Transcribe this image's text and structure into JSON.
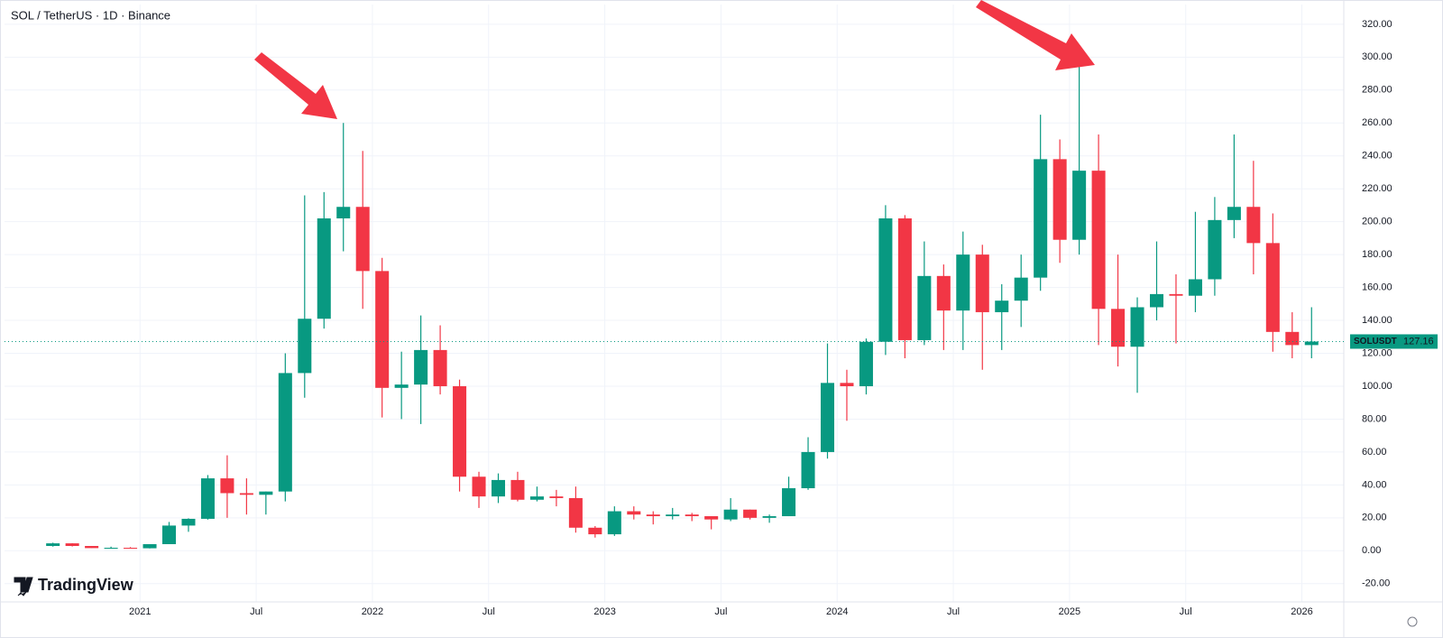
{
  "chart_data": {
    "type": "candlestick",
    "title": "SOL / TetherUS · 1D · Binance",
    "brand": "TradingView",
    "up_color": "#089981",
    "down_color": "#f23645",
    "grid": true,
    "x": [
      "2020-08",
      "2020-09",
      "2020-10",
      "2020-11",
      "2020-12",
      "2021-01",
      "2021-02",
      "2021-03",
      "2021-04",
      "2021-05",
      "2021-06",
      "2021-07",
      "2021-08",
      "2021-09",
      "2021-10",
      "2021-11",
      "2021-12",
      "2022-01",
      "2022-02",
      "2022-03",
      "2022-04",
      "2022-05",
      "2022-06",
      "2022-07",
      "2022-08",
      "2022-09",
      "2022-10",
      "2022-11",
      "2022-12",
      "2023-01",
      "2023-02",
      "2023-03",
      "2023-04",
      "2023-05",
      "2023-06",
      "2023-07",
      "2023-08",
      "2023-09",
      "2023-10",
      "2023-11",
      "2023-12",
      "2024-01",
      "2024-02",
      "2024-03",
      "2024-04",
      "2024-05",
      "2024-06",
      "2024-07",
      "2024-08",
      "2024-09",
      "2024-10",
      "2024-11",
      "2024-12",
      "2025-01",
      "2025-02",
      "2025-03",
      "2025-04",
      "2025-05",
      "2025-06",
      "2025-07",
      "2025-08",
      "2025-09",
      "2025-10",
      "2025-11",
      "2025-12",
      "2026-01"
    ],
    "open": [
      2.9,
      4.5,
      2.9,
      1.6,
      1.8,
      1.5,
      4,
      15.3,
      19.4,
      44,
      35,
      34,
      36,
      108,
      141,
      202,
      209,
      170,
      99,
      101,
      122,
      100,
      45,
      33,
      43,
      31,
      33,
      32,
      14,
      10,
      24,
      22,
      21,
      22,
      21,
      19,
      25,
      20,
      21,
      38,
      60,
      102,
      100,
      127,
      202,
      128,
      167,
      146,
      180,
      145,
      152,
      166,
      238,
      189,
      231,
      147,
      124,
      148,
      156,
      155,
      165,
      201,
      209,
      187,
      133,
      125
    ],
    "high": [
      4.9,
      4.6,
      2.9,
      2.5,
      2.2,
      4,
      17.5,
      19.7,
      46,
      58,
      44,
      36,
      120,
      216,
      218,
      260,
      243,
      178,
      121,
      143,
      137,
      104,
      48,
      47,
      48,
      39,
      37,
      39,
      15,
      27,
      27,
      24,
      26,
      23,
      21,
      32,
      25,
      22,
      45,
      69,
      126,
      110,
      129,
      210,
      204,
      188,
      174,
      194,
      186,
      162,
      180,
      265,
      250,
      295,
      253,
      180,
      154,
      188,
      168,
      206,
      215,
      253,
      237,
      205,
      145,
      148
    ],
    "low": [
      2.5,
      2.6,
      1.7,
      1.2,
      1.3,
      1.4,
      4,
      11.5,
      18.9,
      20,
      22,
      22,
      30,
      93,
      135,
      182,
      147,
      81,
      80,
      77,
      95,
      36,
      26,
      29,
      30,
      30,
      27,
      11,
      8,
      9,
      19,
      16,
      19,
      18,
      13,
      18,
      19,
      17,
      21,
      37,
      56,
      79,
      95,
      119,
      117,
      125,
      122,
      122,
      110,
      122,
      136,
      158,
      175,
      180,
      125,
      112,
      96,
      140,
      126,
      145,
      155,
      190,
      168,
      121,
      117,
      117
    ],
    "close": [
      4.5,
      2.9,
      1.6,
      1.8,
      1.5,
      4,
      15.3,
      19.4,
      44,
      35,
      34,
      36,
      108,
      141,
      202,
      209,
      170,
      99,
      101,
      122,
      100,
      45,
      33,
      43,
      31,
      33,
      32,
      14,
      10,
      24,
      22,
      21,
      22,
      21,
      19,
      25,
      20,
      21,
      38,
      60,
      102,
      100,
      127,
      202,
      128,
      167,
      146,
      180,
      145,
      152,
      166,
      238,
      189,
      231,
      147,
      124,
      148,
      156,
      155,
      165,
      201,
      209,
      187,
      133,
      125,
      127.16
    ],
    "last_price": {
      "label": "SOLUSDT",
      "value": 127.16
    },
    "xlim": [
      "2020-06",
      "2026-02"
    ],
    "xticks": [
      {
        "value": "2021-01",
        "label": "2021"
      },
      {
        "value": "2021-07",
        "label": "Jul"
      },
      {
        "value": "2022-01",
        "label": "2022"
      },
      {
        "value": "2022-07",
        "label": "Jul"
      },
      {
        "value": "2023-01",
        "label": "2023"
      },
      {
        "value": "2023-07",
        "label": "Jul"
      },
      {
        "value": "2024-01",
        "label": "2024"
      },
      {
        "value": "2024-07",
        "label": "Jul"
      },
      {
        "value": "2025-01",
        "label": "2025"
      },
      {
        "value": "2025-07",
        "label": "Jul"
      },
      {
        "value": "2026-01",
        "label": "2026"
      }
    ],
    "ylim": [
      -30,
      332
    ],
    "yticks": [
      {
        "value": -20,
        "label": "-20.00"
      },
      {
        "value": 0,
        "label": "0.00"
      },
      {
        "value": 20,
        "label": "20.00"
      },
      {
        "value": 40,
        "label": "40.00"
      },
      {
        "value": 60,
        "label": "60.00"
      },
      {
        "value": 80,
        "label": "80.00"
      },
      {
        "value": 100,
        "label": "100.00"
      },
      {
        "value": 120,
        "label": "120.00"
      },
      {
        "value": 140,
        "label": "140.00"
      },
      {
        "value": 160,
        "label": "160.00"
      },
      {
        "value": 180,
        "label": "180.00"
      },
      {
        "value": 200,
        "label": "200.00"
      },
      {
        "value": 220,
        "label": "220.00"
      },
      {
        "value": 240,
        "label": "240.00"
      },
      {
        "value": 260,
        "label": "260.00"
      },
      {
        "value": 280,
        "label": "280.00"
      },
      {
        "value": 300,
        "label": "300.00"
      },
      {
        "value": 320,
        "label": "320.00"
      }
    ]
  }
}
